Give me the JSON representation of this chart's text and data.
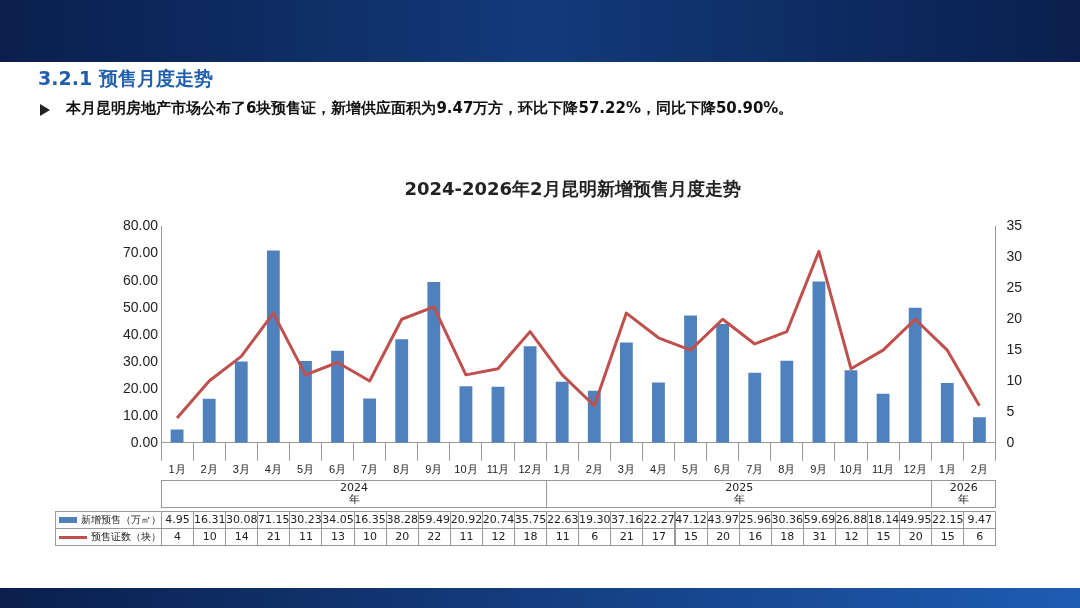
{
  "chart_data": {
    "type": "bar",
    "title": "2024-2026年2月昆明新增预售月度走势",
    "categories": [
      "1月",
      "2月",
      "3月",
      "4月",
      "5月",
      "6月",
      "7月",
      "8月",
      "9月",
      "10月",
      "11月",
      "12月",
      "1月",
      "2月",
      "3月",
      "4月",
      "5月",
      "6月",
      "7月",
      "8月",
      "9月",
      "10月",
      "11月",
      "12月",
      "1月",
      "2月"
    ],
    "series": [
      {
        "name": "新增预售（万㎡）",
        "color": "#4f81bd",
        "values": [
          4.95,
          16.31,
          30.08,
          71.15,
          30.23,
          34.05,
          16.35,
          38.28,
          59.49,
          20.92,
          20.74,
          35.75,
          22.63,
          19.3,
          37.16,
          22.27,
          47.12,
          43.97,
          25.96,
          30.36,
          59.69,
          26.88,
          18.14,
          49.95,
          22.15,
          9.47
        ],
        "value_labels": [
          "4.95",
          "16.31",
          "30.08",
          "71.15",
          "30.23",
          "34.05",
          "16.35",
          "38.28",
          "59.49",
          "20.92",
          "20.74",
          "35.75",
          "22.63",
          "19.30",
          "37.16",
          "22.27",
          "47.12",
          "43.97",
          "25.96",
          "30.36",
          "59.69",
          "26.88",
          "18.14",
          "49.95",
          "22.15",
          "9.47"
        ]
      },
      {
        "name": "预售证数（块）",
        "type": "line",
        "axis": "y2",
        "color": "#c0504d",
        "values": [
          4,
          10,
          14,
          21,
          11,
          13,
          10,
          20,
          22,
          11,
          12,
          18,
          11,
          6,
          21,
          17,
          15,
          20,
          16,
          18,
          31,
          12,
          15,
          20,
          15,
          6
        ],
        "value_labels": [
          "4",
          "10",
          "14",
          "21",
          "11",
          "13",
          "10",
          "20",
          "22",
          "11",
          "12",
          "18",
          "11",
          "6",
          "21",
          "17",
          "15",
          "20",
          "16",
          "18",
          "31",
          "12",
          "15",
          "20",
          "15",
          "6"
        ]
      }
    ],
    "ylim": [
      0,
      80
    ],
    "yticks": [
      {
        "value": 0,
        "label": "0.00"
      },
      {
        "value": 10,
        "label": "10.00"
      },
      {
        "value": 20,
        "label": "20.00"
      },
      {
        "value": 30,
        "label": "30.00"
      },
      {
        "value": 40,
        "label": "40.00"
      },
      {
        "value": 50,
        "label": "50.00"
      },
      {
        "value": 60,
        "label": "60.00"
      },
      {
        "value": 70,
        "label": "70.00"
      },
      {
        "value": 80,
        "label": "80.00"
      }
    ],
    "y2lim": [
      0,
      35
    ],
    "y2ticks": [
      0,
      5,
      10,
      15,
      20,
      25,
      30,
      35
    ],
    "grid": false,
    "legend": "bottom",
    "marker": "none",
    "annotations": [
      "3.2.1 预售月度走势",
      "本月昆明房地产市场公布了6块预售证，新增供应面积为9.47万方，环比下降57.22%，同比下降50.90%。",
      "2024\n年",
      "2025\n年",
      "2026\n年"
    ]
  }
}
